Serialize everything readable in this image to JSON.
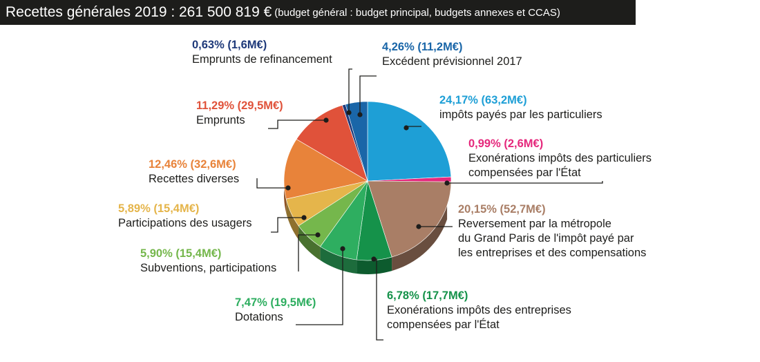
{
  "header": {
    "title": "Recettes générales 2019 : 261 500 819 €",
    "subtitle": "(budget général : budget principal, budgets annexes et CCAS)"
  },
  "chart_data": {
    "type": "pie",
    "title": "Recettes générales 2019 : 261 500 819 €",
    "subtitle": "(budget général : budget principal, budgets annexes et CCAS)",
    "total": "261 500 819 €",
    "slices": [
      {
        "label_value": "24,17% (63,2M€)",
        "percent": 24.17,
        "amount_meur": 63.2,
        "label_lines": [
          "impôts payés par les particuliers"
        ],
        "color": "#1e9fd6"
      },
      {
        "label_value": "0,99% (2,6M€)",
        "percent": 0.99,
        "amount_meur": 2.6,
        "label_lines": [
          "Exonérations impôts des particuliers",
          "compensées par l'État"
        ],
        "color": "#e5287c"
      },
      {
        "label_value": "20,15% (52,7M€)",
        "percent": 20.15,
        "amount_meur": 52.7,
        "label_lines": [
          "Reversement par la métropole",
          "du Grand Paris de l'impôt payé par",
          "les entreprises et des compensations"
        ],
        "color": "#a97e66"
      },
      {
        "label_value": "6,78% (17,7M€)",
        "percent": 6.78,
        "amount_meur": 17.7,
        "label_lines": [
          "Exonérations impôts des entreprises",
          "compensées par l'État"
        ],
        "color": "#15924a"
      },
      {
        "label_value": "7,47% (19,5M€)",
        "percent": 7.47,
        "amount_meur": 19.5,
        "label_lines": [
          "Dotations"
        ],
        "color": "#2eae60"
      },
      {
        "label_value": "5,90% (15,4M€)",
        "percent": 5.9,
        "amount_meur": 15.4,
        "label_lines": [
          "Subventions, participations"
        ],
        "color": "#75b74c"
      },
      {
        "label_value": "5,89% (15,4M€)",
        "percent": 5.89,
        "amount_meur": 15.4,
        "label_lines": [
          "Participations des usagers"
        ],
        "color": "#e5b54b"
      },
      {
        "label_value": "12,46% (32,6M€)",
        "percent": 12.46,
        "amount_meur": 32.6,
        "label_lines": [
          "Recettes diverses"
        ],
        "color": "#e8833a"
      },
      {
        "label_value": "11,29% (29,5M€)",
        "percent": 11.29,
        "amount_meur": 29.5,
        "label_lines": [
          "Emprunts"
        ],
        "color": "#e0523a"
      },
      {
        "label_value": "0,63% (1,6M€)",
        "percent": 0.63,
        "amount_meur": 1.6,
        "label_lines": [
          "Emprunts de refinancement"
        ],
        "color": "#1f3a7a"
      },
      {
        "label_value": "4,26% (11,2M€)",
        "percent": 4.26,
        "amount_meur": 11.2,
        "label_lines": [
          "Excédent prévisionnel 2017"
        ],
        "color": "#1a66a8"
      }
    ],
    "legend": "none"
  }
}
